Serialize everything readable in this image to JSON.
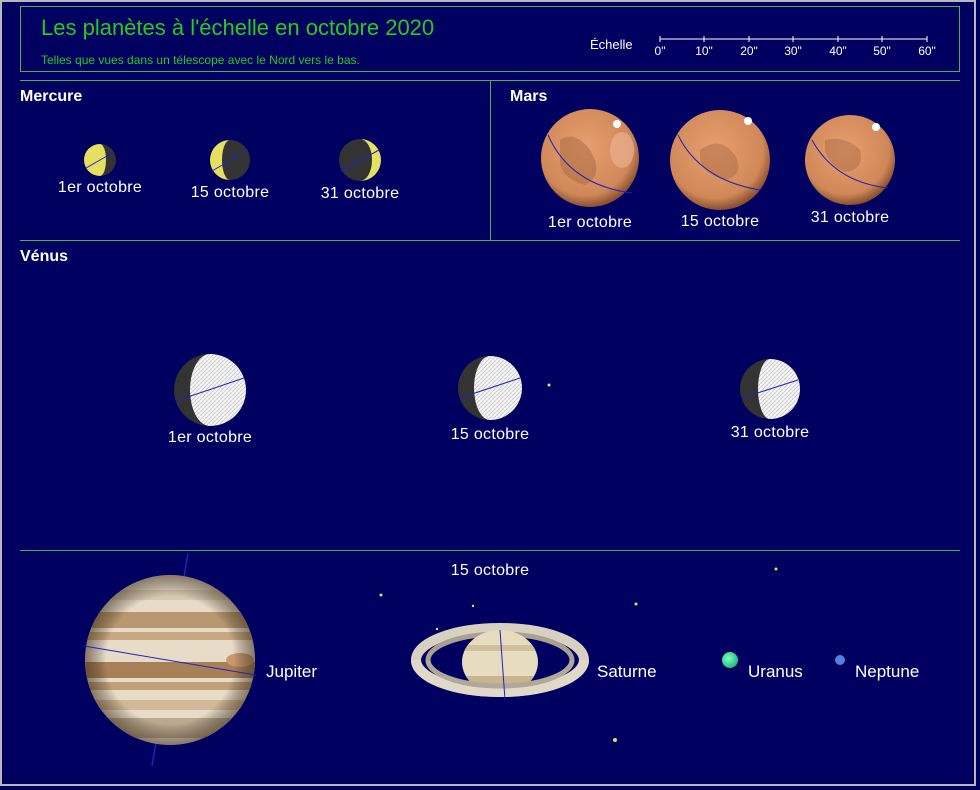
{
  "header": {
    "title": "Les planètes à l'échelle en octobre 2020",
    "subtitle": "Telles que vues dans un télescope avec le Nord vers le bas.",
    "scale_label": "Échelle",
    "scale_ticks": [
      "0\"",
      "10\"",
      "20\"",
      "30\"",
      "40\"",
      "50\"",
      "60\""
    ]
  },
  "sections": {
    "mercury": "Mercure",
    "mars": "Mars",
    "venus": "Vénus",
    "outer_date": "15 octobre"
  },
  "dates": {
    "d1": "1er octobre",
    "d2": "15 octobre",
    "d3": "31 octobre"
  },
  "planets": {
    "jupiter": "Jupiter",
    "saturn": "Saturne",
    "uranus": "Uranus",
    "neptune": "Neptune"
  },
  "colors": {
    "background": "#000060",
    "accent_green": "#22cc22",
    "divider": "#4caf50",
    "mercury_lit": "#e6e060",
    "mars": "#d89060",
    "uranus": "#30e090",
    "neptune": "#5080e0"
  }
}
